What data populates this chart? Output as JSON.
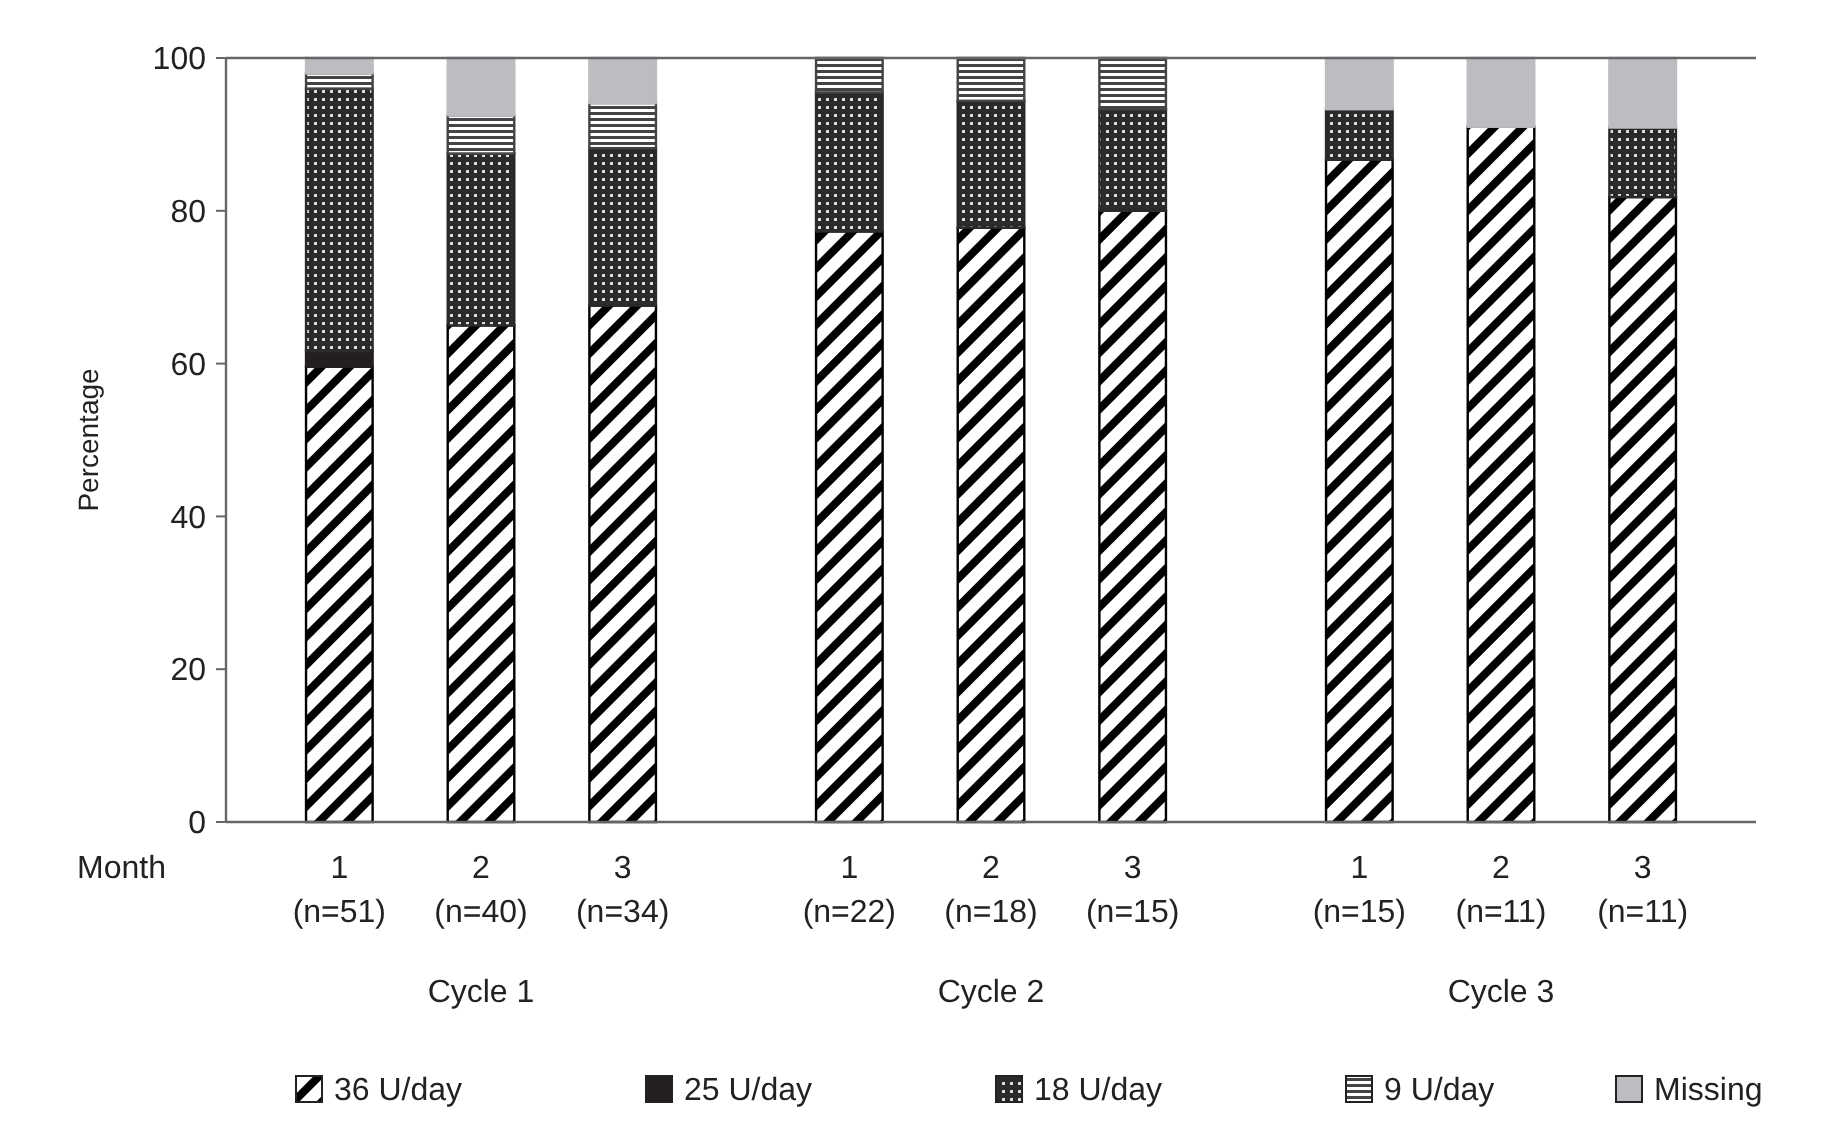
{
  "chart_data": {
    "type": "bar",
    "stacked": true,
    "ylabel": "Percentage",
    "xlabel": "Month",
    "categories": [
      "1\n(n=51)",
      "2\n(n=40)",
      "3\n(n=34)",
      "1\n(n=22)",
      "2\n(n=18)",
      "3\n(n=15)",
      "1\n(n=15)",
      "2\n(n=11)",
      "3\n(n=11)"
    ],
    "annotations": [
      "Cycle 1",
      "Cycle 2",
      "Cycle 3"
    ],
    "series": [
      {
        "name": "36 U/day",
        "color": "#000000",
        "values": [
          59.6,
          65,
          67.6,
          77.3,
          77.8,
          80,
          86.7,
          91,
          81.8
        ]
      },
      {
        "name": "25 U/day",
        "color": "#231f20",
        "values": [
          2,
          0,
          0,
          0,
          0,
          0,
          0,
          0,
          0
        ]
      },
      {
        "name": "18 U/day",
        "color": "#2a2a2a",
        "values": [
          34.4,
          22.5,
          20.6,
          18.2,
          16.6,
          13.3,
          6.6,
          0,
          9.1
        ]
      },
      {
        "name": "9 U/day",
        "color": "#444444",
        "values": [
          2,
          5,
          5.9,
          4.5,
          5.6,
          6.7,
          0,
          0,
          0
        ]
      },
      {
        "name": "Missing",
        "color": "#bcbdc0",
        "values": [
          2,
          7.5,
          5.9,
          0,
          0,
          0,
          6.7,
          9,
          9.1
        ]
      }
    ],
    "ylim": [
      0,
      100
    ],
    "yticks": [
      0,
      20,
      40,
      60,
      80,
      100
    ],
    "grid": false,
    "legend": "bottom"
  }
}
